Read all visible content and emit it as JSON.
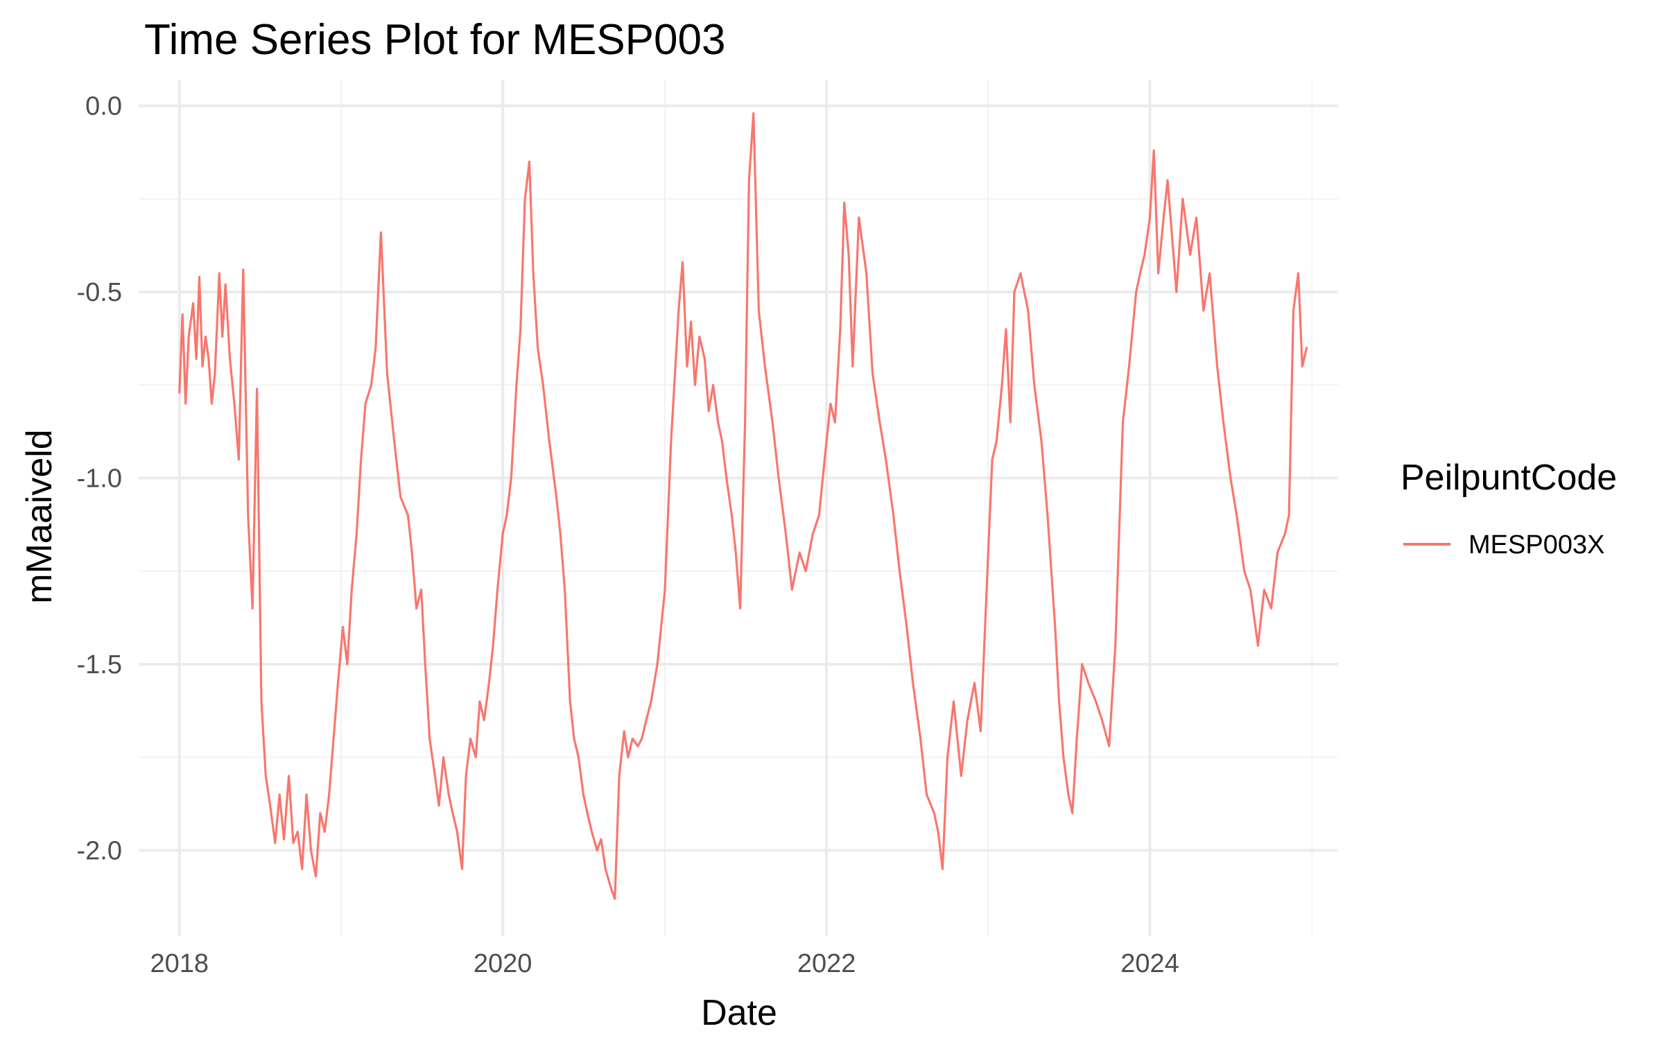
{
  "chart_data": {
    "type": "line",
    "title": "Time Series Plot for MESP003",
    "xlabel": "Date",
    "ylabel": "mMaaiveld",
    "xlim": [
      "2017-10-01",
      "2025-03-01"
    ],
    "ylim": [
      -2.23,
      0.07
    ],
    "x_ticks": [
      "2018",
      "2020",
      "2022",
      "2024"
    ],
    "y_ticks": [
      "-2.0",
      "-1.5",
      "-1.0",
      "-0.5",
      "0.0"
    ],
    "grid": true,
    "legend": {
      "title": "PeilpuntCode",
      "placement": "right",
      "entries": [
        "MESP003X"
      ]
    },
    "series": [
      {
        "name": "MESP003X",
        "color": "#F8766D",
        "x": [
          "2018-01-01",
          "2018-01-08",
          "2018-01-15",
          "2018-01-22",
          "2018-02-01",
          "2018-02-08",
          "2018-02-15",
          "2018-02-22",
          "2018-03-01",
          "2018-03-08",
          "2018-03-15",
          "2018-03-22",
          "2018-04-01",
          "2018-04-08",
          "2018-04-15",
          "2018-04-25",
          "2018-05-05",
          "2018-05-15",
          "2018-05-25",
          "2018-06-05",
          "2018-06-15",
          "2018-06-25",
          "2018-07-05",
          "2018-07-15",
          "2018-07-25",
          "2018-08-05",
          "2018-08-15",
          "2018-08-25",
          "2018-09-05",
          "2018-09-15",
          "2018-09-25",
          "2018-10-05",
          "2018-10-15",
          "2018-10-25",
          "2018-11-05",
          "2018-11-15",
          "2018-11-25",
          "2018-12-05",
          "2018-12-15",
          "2018-12-25",
          "2019-01-05",
          "2019-01-15",
          "2019-01-25",
          "2019-02-05",
          "2019-02-15",
          "2019-02-25",
          "2019-03-10",
          "2019-03-20",
          "2019-04-01",
          "2019-04-15",
          "2019-05-01",
          "2019-05-15",
          "2019-06-01",
          "2019-06-10",
          "2019-06-20",
          "2019-07-01",
          "2019-07-10",
          "2019-07-20",
          "2019-08-01",
          "2019-08-10",
          "2019-08-20",
          "2019-09-01",
          "2019-09-10",
          "2019-09-20",
          "2019-10-01",
          "2019-10-10",
          "2019-10-20",
          "2019-11-01",
          "2019-11-10",
          "2019-11-20",
          "2019-12-01",
          "2019-12-10",
          "2019-12-20",
          "2020-01-01",
          "2020-01-10",
          "2020-01-20",
          "2020-02-01",
          "2020-02-10",
          "2020-02-20",
          "2020-03-01",
          "2020-03-10",
          "2020-03-20",
          "2020-04-01",
          "2020-04-15",
          "2020-05-01",
          "2020-05-10",
          "2020-05-20",
          "2020-06-01",
          "2020-06-10",
          "2020-06-20",
          "2020-07-01",
          "2020-07-10",
          "2020-07-20",
          "2020-08-01",
          "2020-08-10",
          "2020-08-20",
          "2020-09-01",
          "2020-09-10",
          "2020-09-20",
          "2020-10-01",
          "2020-10-10",
          "2020-10-20",
          "2020-11-01",
          "2020-11-10",
          "2020-11-20",
          "2020-12-01",
          "2020-12-15",
          "2021-01-01",
          "2021-01-15",
          "2021-02-01",
          "2021-02-10",
          "2021-02-20",
          "2021-03-01",
          "2021-03-10",
          "2021-03-20",
          "2021-04-01",
          "2021-04-10",
          "2021-04-20",
          "2021-05-01",
          "2021-05-10",
          "2021-05-20",
          "2021-06-01",
          "2021-06-10",
          "2021-06-20",
          "2021-07-01",
          "2021-07-10",
          "2021-07-20",
          "2021-08-01",
          "2021-08-15",
          "2021-09-01",
          "2021-09-15",
          "2021-10-01",
          "2021-10-15",
          "2021-11-01",
          "2021-11-15",
          "2021-12-01",
          "2021-12-15",
          "2022-01-01",
          "2022-01-10",
          "2022-01-20",
          "2022-02-01",
          "2022-02-10",
          "2022-02-20",
          "2022-03-01",
          "2022-03-15",
          "2022-04-01",
          "2022-04-15",
          "2022-05-01",
          "2022-05-15",
          "2022-06-01",
          "2022-06-15",
          "2022-07-01",
          "2022-07-15",
          "2022-08-01",
          "2022-08-15",
          "2022-09-01",
          "2022-09-10",
          "2022-09-20",
          "2022-10-01",
          "2022-10-15",
          "2022-11-01",
          "2022-11-15",
          "2022-12-01",
          "2022-12-15",
          "2023-01-01",
          "2023-01-10",
          "2023-01-20",
          "2023-02-01",
          "2023-02-10",
          "2023-02-20",
          "2023-03-01",
          "2023-03-15",
          "2023-04-01",
          "2023-04-15",
          "2023-05-01",
          "2023-05-15",
          "2023-06-01",
          "2023-06-10",
          "2023-06-20",
          "2023-07-01",
          "2023-07-10",
          "2023-07-20",
          "2023-08-01",
          "2023-08-15",
          "2023-09-01",
          "2023-09-15",
          "2023-10-01",
          "2023-10-15",
          "2023-11-01",
          "2023-11-15",
          "2023-12-01",
          "2023-12-10",
          "2023-12-20",
          "2024-01-01",
          "2024-01-10",
          "2024-01-20",
          "2024-02-01",
          "2024-02-10",
          "2024-02-20",
          "2024-03-01",
          "2024-03-15",
          "2024-04-01",
          "2024-04-15",
          "2024-05-01",
          "2024-05-15",
          "2024-06-01",
          "2024-06-15",
          "2024-07-01",
          "2024-07-15",
          "2024-08-01",
          "2024-08-15",
          "2024-09-01",
          "2024-09-15",
          "2024-10-01",
          "2024-10-15",
          "2024-11-01",
          "2024-11-10",
          "2024-11-20",
          "2024-12-01",
          "2024-12-10",
          "2024-12-20"
        ],
        "values": [
          -0.77,
          -0.56,
          -0.8,
          -0.62,
          -0.53,
          -0.68,
          -0.46,
          -0.7,
          -0.62,
          -0.68,
          -0.8,
          -0.72,
          -0.45,
          -0.62,
          -0.48,
          -0.68,
          -0.8,
          -0.95,
          -0.44,
          -1.1,
          -1.35,
          -0.76,
          -1.6,
          -1.8,
          -1.88,
          -1.98,
          -1.85,
          -1.97,
          -1.8,
          -1.98,
          -1.95,
          -2.05,
          -1.85,
          -2.0,
          -2.07,
          -1.9,
          -1.95,
          -1.85,
          -1.7,
          -1.55,
          -1.4,
          -1.5,
          -1.3,
          -1.15,
          -0.95,
          -0.8,
          -0.75,
          -0.65,
          -0.34,
          -0.72,
          -0.9,
          -1.05,
          -1.1,
          -1.2,
          -1.35,
          -1.3,
          -1.5,
          -1.7,
          -1.8,
          -1.88,
          -1.75,
          -1.85,
          -1.9,
          -1.95,
          -2.05,
          -1.8,
          -1.7,
          -1.75,
          -1.6,
          -1.65,
          -1.55,
          -1.45,
          -1.3,
          -1.15,
          -1.1,
          -1.0,
          -0.75,
          -0.6,
          -0.25,
          -0.15,
          -0.45,
          -0.65,
          -0.75,
          -0.9,
          -1.05,
          -1.15,
          -1.3,
          -1.6,
          -1.7,
          -1.75,
          -1.85,
          -1.9,
          -1.95,
          -2.0,
          -1.97,
          -2.05,
          -2.1,
          -2.13,
          -1.8,
          -1.68,
          -1.75,
          -1.7,
          -1.72,
          -1.7,
          -1.65,
          -1.6,
          -1.5,
          -1.3,
          -0.9,
          -0.55,
          -0.42,
          -0.7,
          -0.58,
          -0.75,
          -0.62,
          -0.68,
          -0.82,
          -0.75,
          -0.85,
          -0.9,
          -1.0,
          -1.1,
          -1.2,
          -1.35,
          -0.85,
          -0.2,
          -0.02,
          -0.55,
          -0.7,
          -0.85,
          -1.0,
          -1.15,
          -1.3,
          -1.2,
          -1.25,
          -1.15,
          -1.1,
          -0.9,
          -0.8,
          -0.85,
          -0.6,
          -0.26,
          -0.4,
          -0.7,
          -0.3,
          -0.45,
          -0.72,
          -0.85,
          -0.95,
          -1.1,
          -1.25,
          -1.4,
          -1.55,
          -1.7,
          -1.85,
          -1.9,
          -1.95,
          -2.05,
          -1.75,
          -1.6,
          -1.8,
          -1.65,
          -1.55,
          -1.68,
          -1.2,
          -0.95,
          -0.9,
          -0.75,
          -0.6,
          -0.85,
          -0.5,
          -0.45,
          -0.55,
          -0.75,
          -0.9,
          -1.1,
          -1.4,
          -1.6,
          -1.75,
          -1.85,
          -1.9,
          -1.7,
          -1.5,
          -1.55,
          -1.6,
          -1.65,
          -1.72,
          -1.45,
          -0.85,
          -0.7,
          -0.5,
          -0.45,
          -0.4,
          -0.3,
          -0.12,
          -0.45,
          -0.3,
          -0.2,
          -0.35,
          -0.5,
          -0.25,
          -0.4,
          -0.3,
          -0.55,
          -0.45,
          -0.7,
          -0.85,
          -1.0,
          -1.1,
          -1.25,
          -1.3,
          -1.45,
          -1.3,
          -1.35,
          -1.2,
          -1.15,
          -1.1,
          -0.55,
          -0.45,
          -0.7,
          -0.65
        ]
      }
    ]
  }
}
